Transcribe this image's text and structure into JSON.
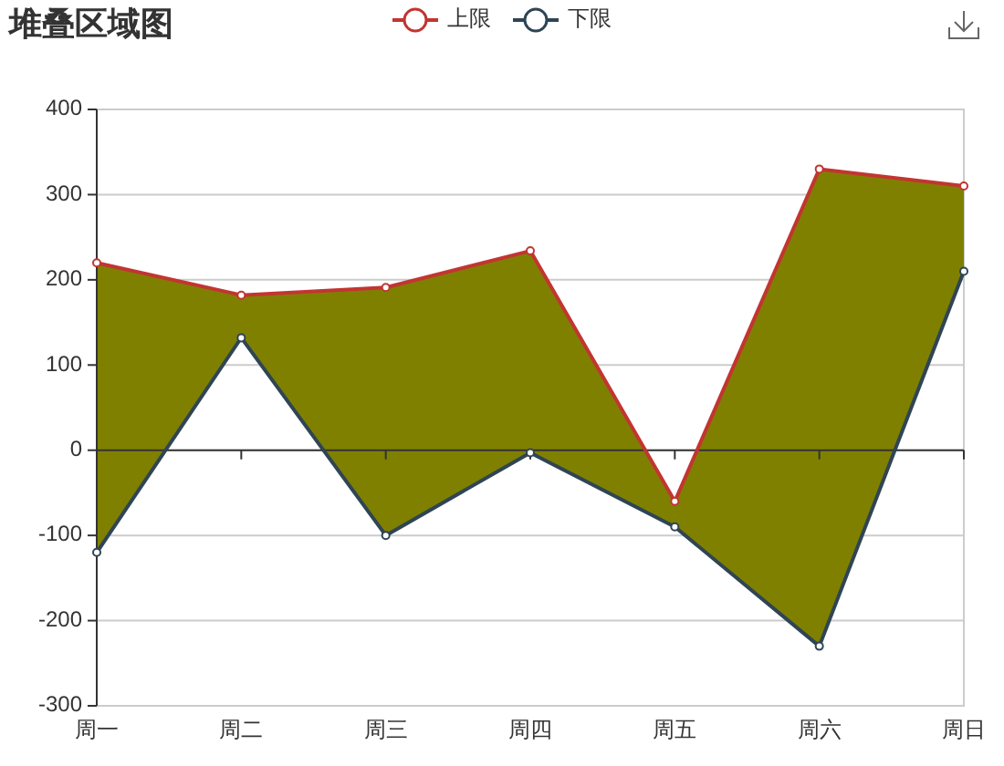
{
  "chart_data": {
    "type": "line",
    "title": "堆叠区域图",
    "categories": [
      "周一",
      "周二",
      "周三",
      "周四",
      "周五",
      "周六",
      "周日"
    ],
    "series": [
      {
        "name": "上限",
        "color": "#c23531",
        "values": [
          220,
          182,
          191,
          234,
          -60,
          330,
          310
        ],
        "lower": [
          -120,
          132,
          -100,
          -3,
          -90,
          -230,
          210
        ],
        "upper": [
          220,
          182,
          191,
          234,
          -60,
          330,
          310
        ]
      },
      {
        "name": "下限",
        "color": "#2f4554",
        "values": [
          -120,
          132,
          -100,
          -3,
          -90,
          -230,
          210
        ]
      }
    ],
    "ylim": [
      -300,
      400
    ],
    "yticks": [
      -300,
      -200,
      -100,
      0,
      100,
      200,
      300,
      400
    ],
    "grid": "y",
    "legend": "top",
    "marker": "circle"
  }
}
